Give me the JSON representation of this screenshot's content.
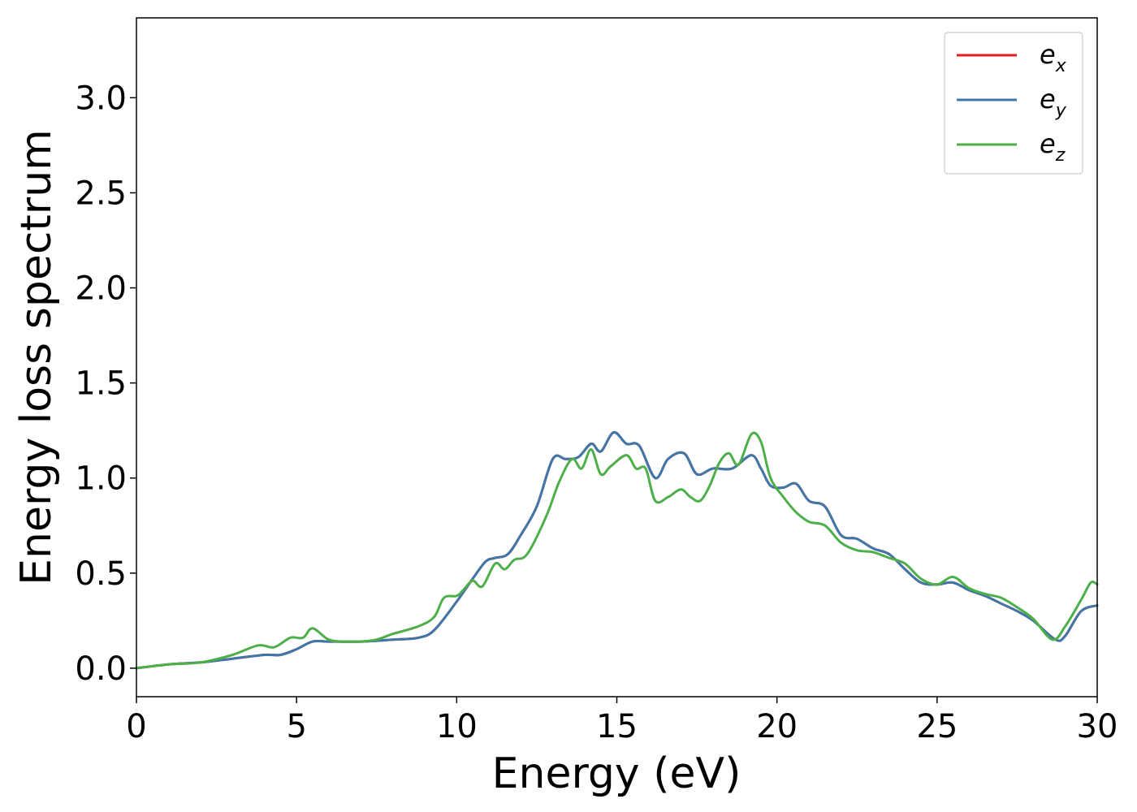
{
  "chart_data": {
    "type": "line",
    "title": "",
    "xlabel": "Energy (eV)",
    "ylabel": "Energy loss spectrum",
    "xlim": [
      0,
      30
    ],
    "ylim": [
      -0.15,
      3.42
    ],
    "xticks": [
      0,
      5,
      10,
      15,
      20,
      25,
      30
    ],
    "xtick_labels": [
      "0",
      "5",
      "10",
      "15",
      "20",
      "25",
      "30"
    ],
    "yticks": [
      0.0,
      0.5,
      1.0,
      1.5,
      2.0,
      2.5,
      3.0
    ],
    "ytick_labels": [
      "0.0",
      "0.5",
      "1.0",
      "1.5",
      "2.0",
      "2.5",
      "3.0"
    ],
    "grid": false,
    "legend_position": "top-right",
    "series": [
      {
        "name": "e_x",
        "legend_base": "e",
        "legend_sub": "x",
        "color": "#e41a1c",
        "x": [
          0,
          1,
          2,
          3,
          4,
          4.5,
          5,
          5.5,
          6,
          7,
          8,
          8.8,
          9.3,
          10,
          10.5,
          10.9,
          11.2,
          11.6,
          12,
          12.5,
          13,
          13.4,
          13.8,
          14.2,
          14.5,
          14.9,
          15.3,
          15.7,
          16.2,
          16.6,
          17.1,
          17.5,
          18,
          18.6,
          19.2,
          19.5,
          19.8,
          20.2,
          20.6,
          21,
          21.5,
          22,
          22.5,
          23,
          23.5,
          24,
          24.5,
          25,
          25.5,
          26,
          26.5,
          27,
          27.5,
          28,
          28.7,
          29,
          29.5,
          30
        ],
        "y": [
          0.0,
          0.02,
          0.03,
          0.05,
          0.07,
          0.07,
          0.1,
          0.14,
          0.14,
          0.14,
          0.15,
          0.16,
          0.2,
          0.35,
          0.47,
          0.56,
          0.58,
          0.6,
          0.7,
          0.85,
          1.1,
          1.1,
          1.11,
          1.18,
          1.14,
          1.24,
          1.18,
          1.17,
          1.0,
          1.1,
          1.13,
          1.02,
          1.05,
          1.05,
          1.12,
          1.05,
          0.96,
          0.95,
          0.97,
          0.88,
          0.85,
          0.7,
          0.68,
          0.63,
          0.6,
          0.52,
          0.45,
          0.44,
          0.45,
          0.41,
          0.38,
          0.34,
          0.3,
          0.25,
          0.15,
          0.17,
          0.3,
          0.33
        ]
      },
      {
        "name": "e_y",
        "legend_base": "e",
        "legend_sub": "y",
        "color": "#3f77a8",
        "x": [
          0,
          1,
          2,
          3,
          4,
          4.5,
          5,
          5.5,
          6,
          7,
          8,
          8.8,
          9.3,
          10,
          10.5,
          10.9,
          11.2,
          11.6,
          12,
          12.5,
          13,
          13.4,
          13.8,
          14.2,
          14.5,
          14.9,
          15.3,
          15.7,
          16.2,
          16.6,
          17.1,
          17.5,
          18,
          18.6,
          19.2,
          19.5,
          19.8,
          20.2,
          20.6,
          21,
          21.5,
          22,
          22.5,
          23,
          23.5,
          24,
          24.5,
          25,
          25.5,
          26,
          26.5,
          27,
          27.5,
          28,
          28.7,
          29,
          29.5,
          30
        ],
        "y": [
          0.0,
          0.02,
          0.03,
          0.05,
          0.07,
          0.07,
          0.1,
          0.14,
          0.14,
          0.14,
          0.15,
          0.16,
          0.2,
          0.35,
          0.47,
          0.56,
          0.58,
          0.6,
          0.7,
          0.85,
          1.1,
          1.1,
          1.11,
          1.18,
          1.14,
          1.24,
          1.18,
          1.17,
          1.0,
          1.1,
          1.13,
          1.02,
          1.05,
          1.05,
          1.12,
          1.05,
          0.96,
          0.95,
          0.97,
          0.88,
          0.85,
          0.7,
          0.68,
          0.63,
          0.6,
          0.52,
          0.45,
          0.44,
          0.45,
          0.41,
          0.38,
          0.34,
          0.3,
          0.25,
          0.15,
          0.17,
          0.3,
          0.33
        ]
      },
      {
        "name": "e_z",
        "legend_base": "e",
        "legend_sub": "z",
        "color": "#4daf4a",
        "x": [
          0,
          1,
          2,
          3,
          3.8,
          4.3,
          4.8,
          5.2,
          5.5,
          6,
          6.5,
          7,
          7.5,
          8,
          8.8,
          9.3,
          9.6,
          10,
          10.2,
          10.5,
          10.8,
          11.2,
          11.5,
          11.8,
          12.2,
          12.8,
          13.2,
          13.6,
          13.9,
          14.2,
          14.5,
          14.8,
          15.3,
          15.6,
          15.9,
          16.2,
          16.6,
          17,
          17.3,
          17.6,
          17.9,
          18.2,
          18.5,
          18.8,
          19.2,
          19.5,
          19.8,
          20.2,
          20.6,
          21,
          21.5,
          22,
          22.5,
          23,
          23.5,
          24,
          24.5,
          25,
          25.5,
          26,
          26.5,
          27,
          27.5,
          28,
          28.6,
          29,
          29.5,
          29.8,
          30
        ],
        "y": [
          0.0,
          0.02,
          0.03,
          0.07,
          0.12,
          0.11,
          0.16,
          0.16,
          0.21,
          0.15,
          0.14,
          0.14,
          0.15,
          0.18,
          0.22,
          0.27,
          0.37,
          0.38,
          0.41,
          0.46,
          0.43,
          0.55,
          0.52,
          0.57,
          0.6,
          0.8,
          0.98,
          1.1,
          1.05,
          1.15,
          1.02,
          1.06,
          1.12,
          1.05,
          1.05,
          0.88,
          0.9,
          0.94,
          0.9,
          0.88,
          0.96,
          1.08,
          1.13,
          1.07,
          1.23,
          1.19,
          1.0,
          0.9,
          0.82,
          0.77,
          0.75,
          0.66,
          0.62,
          0.61,
          0.58,
          0.55,
          0.47,
          0.44,
          0.48,
          0.42,
          0.39,
          0.37,
          0.32,
          0.26,
          0.15,
          0.22,
          0.36,
          0.45,
          0.44
        ]
      }
    ]
  }
}
